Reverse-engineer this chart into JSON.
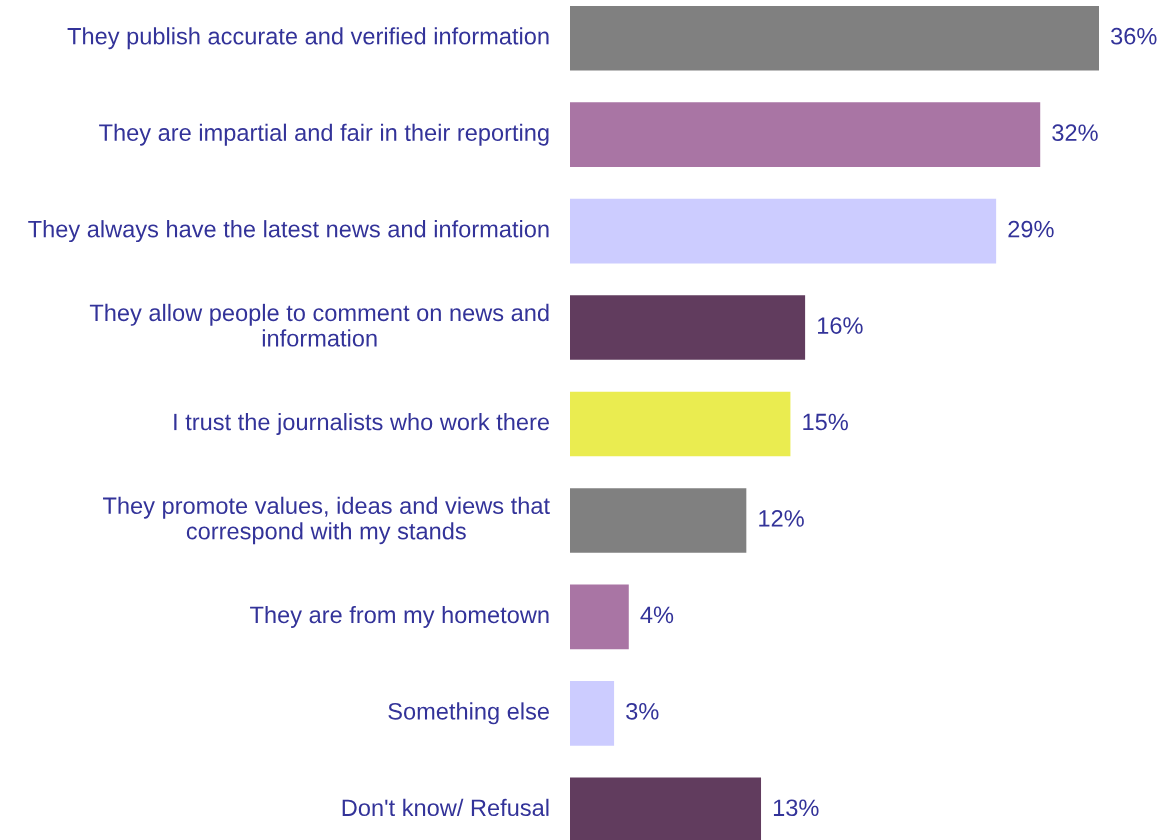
{
  "chart_data": {
    "type": "bar",
    "orientation": "horizontal",
    "categories": [
      "They publish accurate and verified information",
      "They are impartial and fair in their reporting",
      "They always have the latest news and information",
      "They allow people to comment on news and information",
      "I trust the journalists who work there",
      "They promote values, ideas and views that correspond with my stands",
      "They are from my hometown",
      "Something else",
      "Don't know/ Refusal"
    ],
    "values": [
      36,
      32,
      29,
      16,
      15,
      12,
      4,
      3,
      13
    ],
    "colors": [
      "#808080",
      "#a975a4",
      "#ccccff",
      "#613c5e",
      "#eaec50",
      "#808080",
      "#a975a4",
      "#ccccff",
      "#613c5e"
    ],
    "value_labels": [
      "36%",
      "32%",
      "29%",
      "16%",
      "15%",
      "12%",
      "4%",
      "3%",
      "13%"
    ]
  }
}
